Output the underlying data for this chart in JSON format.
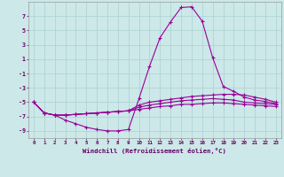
{
  "x": [
    0,
    1,
    2,
    3,
    4,
    5,
    6,
    7,
    8,
    9,
    10,
    11,
    12,
    13,
    14,
    15,
    16,
    17,
    18,
    19,
    20,
    21,
    22,
    23
  ],
  "line1": [
    -5.0,
    -6.5,
    -6.8,
    -7.5,
    -8.0,
    -8.5,
    -8.8,
    -9.0,
    -9.0,
    -8.8,
    -4.5,
    0.0,
    4.0,
    6.2,
    8.2,
    8.3,
    6.3,
    1.2,
    -2.8,
    -3.5,
    -4.3,
    -4.7,
    -4.9,
    -5.2
  ],
  "line2": [
    -5.0,
    -6.5,
    -6.8,
    -6.8,
    -6.7,
    -6.6,
    -6.5,
    -6.4,
    -6.3,
    -6.2,
    -5.4,
    -5.0,
    -4.8,
    -4.6,
    -4.4,
    -4.2,
    -4.1,
    -4.0,
    -3.9,
    -3.9,
    -4.0,
    -4.3,
    -4.6,
    -5.0
  ],
  "line3": [
    -5.0,
    -6.5,
    -6.8,
    -6.8,
    -6.7,
    -6.6,
    -6.5,
    -6.4,
    -6.3,
    -6.2,
    -5.7,
    -5.4,
    -5.2,
    -5.0,
    -4.8,
    -4.7,
    -4.6,
    -4.5,
    -4.6,
    -4.7,
    -5.0,
    -5.1,
    -5.2,
    -5.3
  ],
  "line4": [
    -5.0,
    -6.5,
    -6.8,
    -6.8,
    -6.7,
    -6.6,
    -6.5,
    -6.4,
    -6.3,
    -6.2,
    -6.0,
    -5.8,
    -5.6,
    -5.5,
    -5.3,
    -5.3,
    -5.2,
    -5.1,
    -5.1,
    -5.2,
    -5.3,
    -5.4,
    -5.5,
    -5.6
  ],
  "line_color": "#990099",
  "bg_color": "#cce8e8",
  "grid_color": "#b0d4d4",
  "xlabel": "Windchill (Refroidissement éolien,°C)",
  "xlabel_color": "#660066",
  "tick_color": "#660066",
  "ylim": [
    -10,
    9
  ],
  "xlim": [
    -0.5,
    23.5
  ],
  "yticks": [
    -9,
    -7,
    -5,
    -3,
    -1,
    1,
    3,
    5,
    7
  ],
  "xticks": [
    0,
    1,
    2,
    3,
    4,
    5,
    6,
    7,
    8,
    9,
    10,
    11,
    12,
    13,
    14,
    15,
    16,
    17,
    18,
    19,
    20,
    21,
    22,
    23
  ]
}
